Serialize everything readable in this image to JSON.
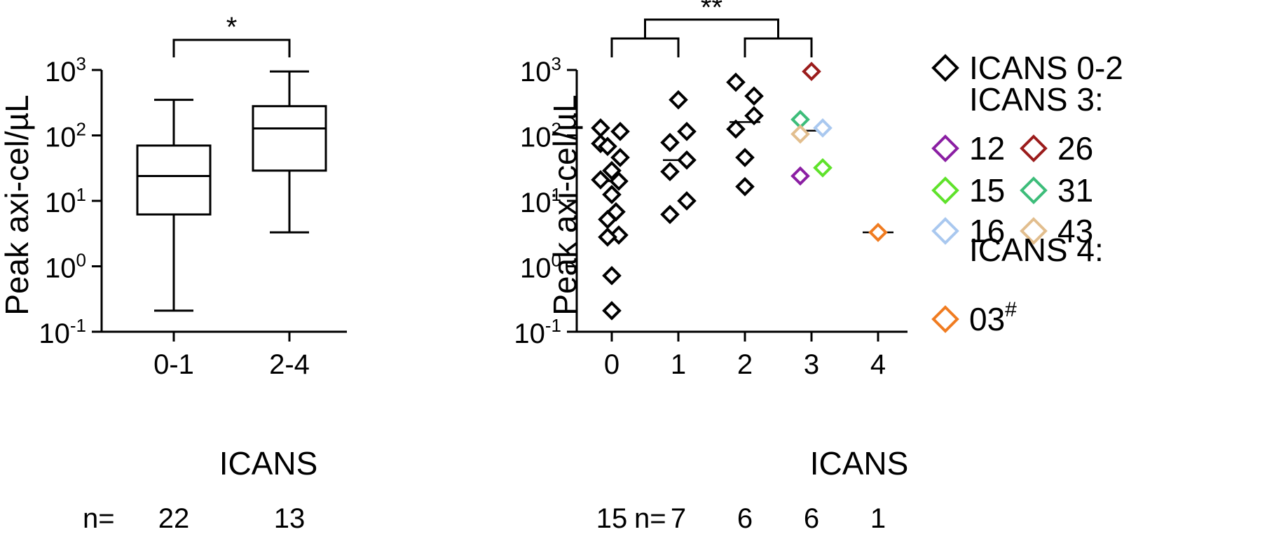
{
  "chart_data": [
    {
      "type": "box",
      "ylabel": "Peak axi-cel/µL",
      "xlabel": "ICANS",
      "yscale": "log",
      "ylim": [
        0.1,
        1000
      ],
      "yticks": [
        {
          "value": 0.1,
          "base": "10",
          "exp": "-1"
        },
        {
          "value": 1,
          "base": "10",
          "exp": "0"
        },
        {
          "value": 10,
          "base": "10",
          "exp": "1"
        },
        {
          "value": 100,
          "base": "10",
          "exp": "2"
        },
        {
          "value": 1000,
          "base": "10",
          "exp": "3"
        }
      ],
      "categories": [
        "0-1",
        "2-4"
      ],
      "boxes": [
        {
          "category": "0-1",
          "min": 0.21,
          "q1": 6.2,
          "median": 24,
          "q3": 70,
          "max": 350
        },
        {
          "category": "2-4",
          "min": 3.3,
          "q1": 29,
          "median": 128,
          "q3": 280,
          "max": 950
        }
      ],
      "significance": [
        {
          "from": "0-1",
          "to": "2-4",
          "label": "*"
        }
      ],
      "n_prefix": "n=",
      "n_values": [
        "22",
        "13"
      ]
    },
    {
      "type": "scatter",
      "ylabel": "Peak axi-cel/µL",
      "xlabel": "ICANS",
      "yscale": "log",
      "ylim": [
        0.1,
        1000
      ],
      "yticks": [
        {
          "value": 0.1,
          "base": "10",
          "exp": "-1"
        },
        {
          "value": 1,
          "base": "10",
          "exp": "0"
        },
        {
          "value": 10,
          "base": "10",
          "exp": "1"
        },
        {
          "value": 100,
          "base": "10",
          "exp": "2"
        },
        {
          "value": 1000,
          "base": "10",
          "exp": "3"
        }
      ],
      "categories": [
        "0",
        "1",
        "2",
        "3",
        "4"
      ],
      "medians": [
        20,
        42,
        160,
        118,
        3.3
      ],
      "points": [
        {
          "category": "0",
          "y": 130,
          "group": "ICANS 0-2",
          "color": "#000000"
        },
        {
          "category": "0",
          "y": 115,
          "group": "ICANS 0-2",
          "color": "#000000"
        },
        {
          "category": "0",
          "y": 75,
          "group": "ICANS 0-2",
          "color": "#000000"
        },
        {
          "category": "0",
          "y": 68,
          "group": "ICANS 0-2",
          "color": "#000000"
        },
        {
          "category": "0",
          "y": 46,
          "group": "ICANS 0-2",
          "color": "#000000"
        },
        {
          "category": "0",
          "y": 29,
          "group": "ICANS 0-2",
          "color": "#000000"
        },
        {
          "category": "0",
          "y": 21,
          "group": "ICANS 0-2",
          "color": "#000000"
        },
        {
          "category": "0",
          "y": 20,
          "group": "ICANS 0-2",
          "color": "#000000"
        },
        {
          "category": "0",
          "y": 12.5,
          "group": "ICANS 0-2",
          "color": "#000000"
        },
        {
          "category": "0",
          "y": 6.8,
          "group": "ICANS 0-2",
          "color": "#000000"
        },
        {
          "category": "0",
          "y": 5.2,
          "group": "ICANS 0-2",
          "color": "#000000"
        },
        {
          "category": "0",
          "y": 3.0,
          "group": "ICANS 0-2",
          "color": "#000000"
        },
        {
          "category": "0",
          "y": 2.8,
          "group": "ICANS 0-2",
          "color": "#000000"
        },
        {
          "category": "0",
          "y": 0.72,
          "group": "ICANS 0-2",
          "color": "#000000"
        },
        {
          "category": "0",
          "y": 0.21,
          "group": "ICANS 0-2",
          "color": "#000000"
        },
        {
          "category": "1",
          "y": 350,
          "group": "ICANS 0-2",
          "color": "#000000"
        },
        {
          "category": "1",
          "y": 115,
          "group": "ICANS 0-2",
          "color": "#000000"
        },
        {
          "category": "1",
          "y": 78,
          "group": "ICANS 0-2",
          "color": "#000000"
        },
        {
          "category": "1",
          "y": 42,
          "group": "ICANS 0-2",
          "color": "#000000"
        },
        {
          "category": "1",
          "y": 28,
          "group": "ICANS 0-2",
          "color": "#000000"
        },
        {
          "category": "1",
          "y": 10,
          "group": "ICANS 0-2",
          "color": "#000000"
        },
        {
          "category": "1",
          "y": 6.2,
          "group": "ICANS 0-2",
          "color": "#000000"
        },
        {
          "category": "2",
          "y": 650,
          "group": "ICANS 0-2",
          "color": "#000000"
        },
        {
          "category": "2",
          "y": 400,
          "group": "ICANS 0-2",
          "color": "#000000"
        },
        {
          "category": "2",
          "y": 200,
          "group": "ICANS 0-2",
          "color": "#000000"
        },
        {
          "category": "2",
          "y": 125,
          "group": "ICANS 0-2",
          "color": "#000000"
        },
        {
          "category": "2",
          "y": 46,
          "group": "ICANS 0-2",
          "color": "#000000"
        },
        {
          "category": "2",
          "y": 16.5,
          "group": "ICANS 0-2",
          "color": "#000000"
        },
        {
          "category": "3",
          "y": 950,
          "group": "26",
          "color": "#9b1c1c"
        },
        {
          "category": "3",
          "y": 175,
          "group": "31",
          "color": "#3dbd7a"
        },
        {
          "category": "3",
          "y": 130,
          "group": "16",
          "color": "#a9c8ef"
        },
        {
          "category": "3",
          "y": 105,
          "group": "43",
          "color": "#e2be8e"
        },
        {
          "category": "3",
          "y": 32,
          "group": "15",
          "color": "#5fe22b"
        },
        {
          "category": "3",
          "y": 24,
          "group": "12",
          "color": "#8b1fa3"
        },
        {
          "category": "4",
          "y": 3.3,
          "group": "03#",
          "color": "#f07c21"
        }
      ],
      "significance": [
        {
          "from": "0",
          "to": "1",
          "label": ""
        },
        {
          "from": "2",
          "to": "3",
          "label": ""
        },
        {
          "from": "0-1",
          "to": "2-3",
          "label": "**"
        }
      ],
      "n_prefix": "n=",
      "n_values": [
        "15",
        "7",
        "6",
        "6",
        "1"
      ],
      "legend": {
        "placement": "right",
        "items": [
          {
            "type": "entry",
            "label": "ICANS 0-2",
            "color": "#000000"
          },
          {
            "type": "header",
            "label": "ICANS 3:"
          },
          {
            "type": "pair",
            "entries": [
              {
                "label": "12",
                "color": "#8b1fa3"
              },
              {
                "label": "26",
                "color": "#9b1c1c"
              }
            ]
          },
          {
            "type": "pair",
            "entries": [
              {
                "label": "15",
                "color": "#5fe22b"
              },
              {
                "label": "31",
                "color": "#3dbd7a"
              }
            ]
          },
          {
            "type": "pair",
            "entries": [
              {
                "label": "16",
                "color": "#a9c8ef"
              },
              {
                "label": "43",
                "color": "#e2be8e"
              }
            ]
          },
          {
            "type": "header",
            "label": "ICANS 4:"
          },
          {
            "type": "entry",
            "label": "03",
            "sup": "#",
            "color": "#f07c21"
          }
        ]
      }
    }
  ]
}
